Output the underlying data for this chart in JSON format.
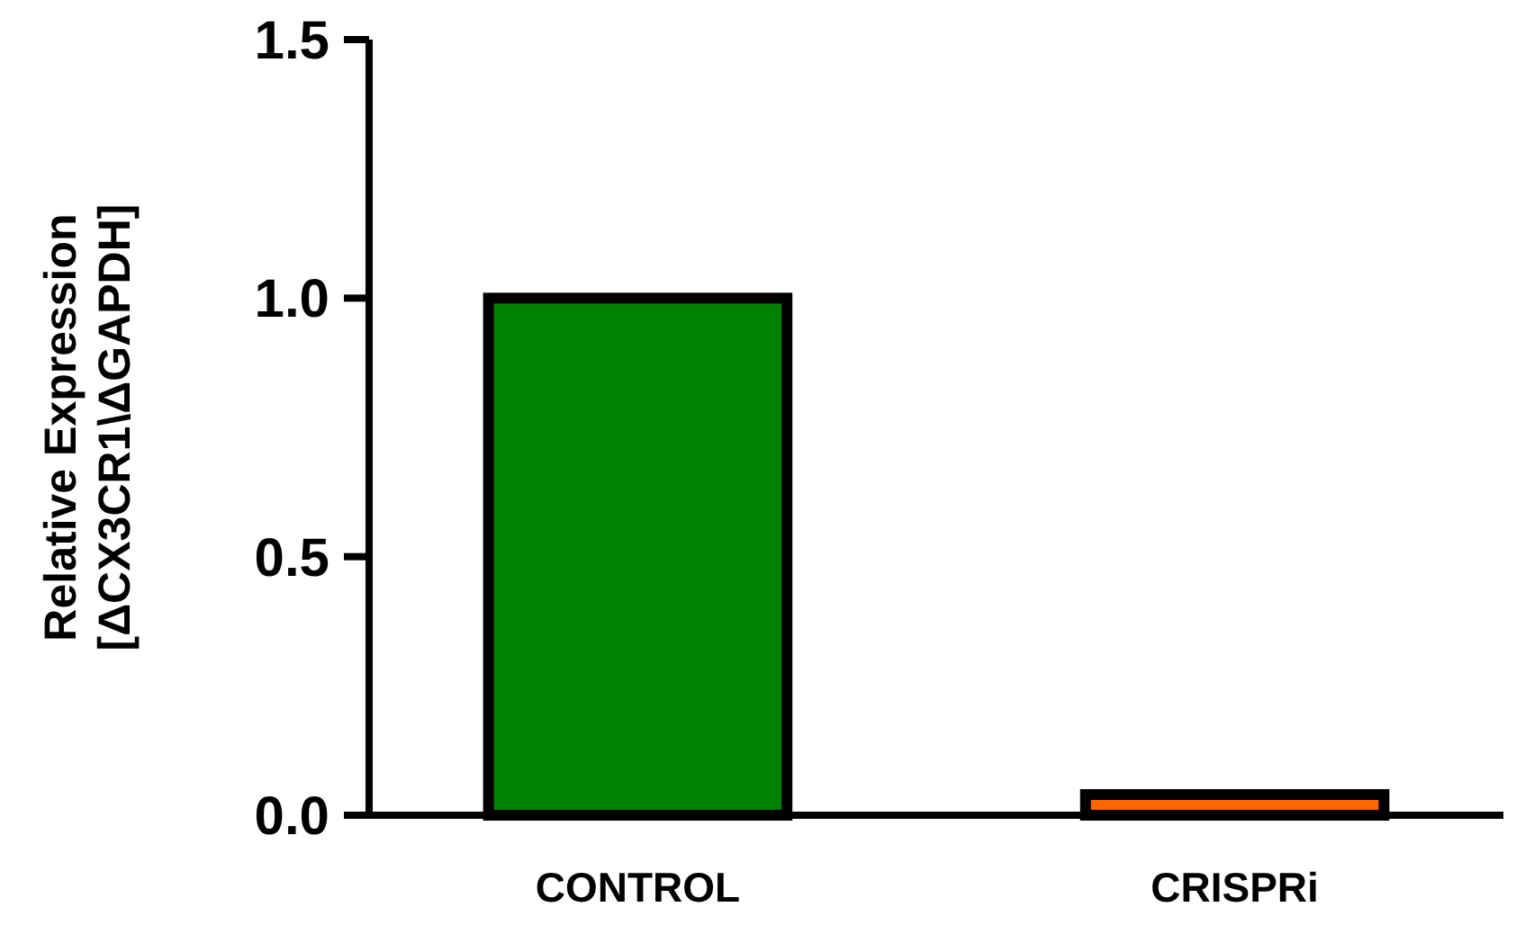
{
  "chart_data": {
    "type": "bar",
    "ylabel": "Relative Expression\n[ΔCX3CR1\\ΔGAPDH]",
    "categories": [
      "CONTROL",
      "CRISPRi"
    ],
    "values": [
      1.0,
      0.04
    ],
    "colors": [
      "#008000",
      "#ff6600"
    ],
    "ylim": [
      0,
      1.5
    ],
    "yticks": [
      {
        "value": 0,
        "label": "0.0"
      },
      {
        "value": 0.5,
        "label": "0.5"
      },
      {
        "value": 1,
        "label": "1.0"
      },
      {
        "value": 1.5,
        "label": "1.5"
      }
    ]
  }
}
